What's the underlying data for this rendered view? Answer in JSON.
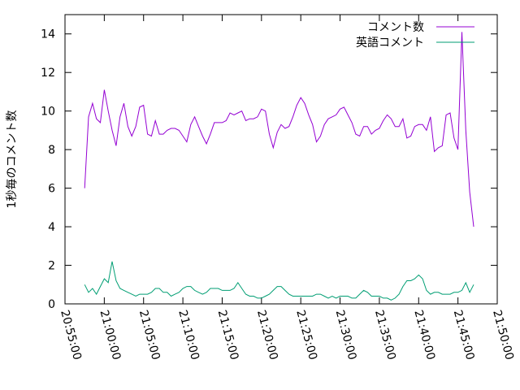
{
  "chart_data": {
    "type": "line",
    "title": "",
    "xlabel": "",
    "ylabel": "1秒毎のコメント数",
    "xlim": [
      "20:55:00",
      "21:50:00"
    ],
    "ylim": [
      0,
      15
    ],
    "x_ticks": [
      "20:55:00",
      "21:00:00",
      "21:05:00",
      "21:10:00",
      "21:15:00",
      "21:20:00",
      "21:25:00",
      "21:30:00",
      "21:35:00",
      "21:40:00",
      "21:45:00",
      "21:50:00"
    ],
    "y_ticks": [
      "0",
      "2",
      "4",
      "6",
      "8",
      "10",
      "12",
      "14"
    ],
    "legend_position": "top-right",
    "grid": false,
    "series": [
      {
        "name": "コメント数",
        "color": "#9400d3",
        "x": [
          "20:57:30",
          "20:58:00",
          "20:58:30",
          "20:59:00",
          "20:59:30",
          "21:00:00",
          "21:00:30",
          "21:01:00",
          "21:01:30",
          "21:02:00",
          "21:02:30",
          "21:03:00",
          "21:03:30",
          "21:04:00",
          "21:04:30",
          "21:05:00",
          "21:05:30",
          "21:06:00",
          "21:06:30",
          "21:07:00",
          "21:07:30",
          "21:08:00",
          "21:08:30",
          "21:09:00",
          "21:09:30",
          "21:10:00",
          "21:10:30",
          "21:11:00",
          "21:11:30",
          "21:12:00",
          "21:12:30",
          "21:13:00",
          "21:13:30",
          "21:14:00",
          "21:14:30",
          "21:15:00",
          "21:15:30",
          "21:16:00",
          "21:16:30",
          "21:17:00",
          "21:17:30",
          "21:18:00",
          "21:18:30",
          "21:19:00",
          "21:19:30",
          "21:20:00",
          "21:20:30",
          "21:21:00",
          "21:21:30",
          "21:22:00",
          "21:22:30",
          "21:23:00",
          "21:23:30",
          "21:24:00",
          "21:24:30",
          "21:25:00",
          "21:25:30",
          "21:26:00",
          "21:26:30",
          "21:27:00",
          "21:27:30",
          "21:28:00",
          "21:28:30",
          "21:29:00",
          "21:29:30",
          "21:30:00",
          "21:30:30",
          "21:31:00",
          "21:31:30",
          "21:32:00",
          "21:32:30",
          "21:33:00",
          "21:33:30",
          "21:34:00",
          "21:34:30",
          "21:35:00",
          "21:35:30",
          "21:36:00",
          "21:36:30",
          "21:37:00",
          "21:37:30",
          "21:38:00",
          "21:38:30",
          "21:39:00",
          "21:39:30",
          "21:40:00",
          "21:40:30",
          "21:41:00",
          "21:41:30",
          "21:42:00",
          "21:42:30",
          "21:43:00",
          "21:43:30",
          "21:44:00",
          "21:44:30",
          "21:45:00",
          "21:45:30",
          "21:46:00",
          "21:46:30",
          "21:47:00"
        ],
        "values": [
          6.0,
          9.7,
          10.4,
          9.6,
          9.4,
          11.1,
          10.0,
          9.0,
          8.2,
          9.7,
          10.4,
          9.2,
          8.7,
          9.2,
          10.2,
          10.3,
          8.8,
          8.7,
          9.5,
          8.8,
          8.8,
          9.0,
          9.1,
          9.1,
          9.0,
          8.7,
          8.4,
          9.3,
          9.7,
          9.2,
          8.7,
          8.3,
          8.8,
          9.4,
          9.4,
          9.4,
          9.5,
          9.9,
          9.8,
          9.9,
          10.0,
          9.5,
          9.6,
          9.6,
          9.7,
          10.1,
          10.0,
          8.8,
          8.1,
          8.9,
          9.3,
          9.1,
          9.2,
          9.7,
          10.3,
          10.7,
          10.4,
          9.8,
          9.3,
          8.4,
          8.7,
          9.3,
          9.6,
          9.7,
          9.8,
          10.1,
          10.2,
          9.8,
          9.4,
          8.8,
          8.7,
          9.2,
          9.2,
          8.8,
          9.0,
          9.1,
          9.5,
          9.8,
          9.6,
          9.2,
          9.2,
          9.6,
          8.6,
          8.7,
          9.2,
          9.3,
          9.3,
          9.0,
          9.7,
          7.9,
          8.1,
          8.2,
          9.8,
          9.9,
          8.6,
          8.0,
          14.1,
          9.0,
          5.8,
          4.0
        ]
      },
      {
        "name": "英語コメント",
        "color": "#009e73",
        "x": [
          "20:57:30",
          "20:58:00",
          "20:58:30",
          "20:59:00",
          "20:59:30",
          "21:00:00",
          "21:00:30",
          "21:01:00",
          "21:01:30",
          "21:02:00",
          "21:02:30",
          "21:03:00",
          "21:03:30",
          "21:04:00",
          "21:04:30",
          "21:05:00",
          "21:05:30",
          "21:06:00",
          "21:06:30",
          "21:07:00",
          "21:07:30",
          "21:08:00",
          "21:08:30",
          "21:09:00",
          "21:09:30",
          "21:10:00",
          "21:10:30",
          "21:11:00",
          "21:11:30",
          "21:12:00",
          "21:12:30",
          "21:13:00",
          "21:13:30",
          "21:14:00",
          "21:14:30",
          "21:15:00",
          "21:15:30",
          "21:16:00",
          "21:16:30",
          "21:17:00",
          "21:17:30",
          "21:18:00",
          "21:18:30",
          "21:19:00",
          "21:19:30",
          "21:20:00",
          "21:20:30",
          "21:21:00",
          "21:21:30",
          "21:22:00",
          "21:22:30",
          "21:23:00",
          "21:23:30",
          "21:24:00",
          "21:24:30",
          "21:25:00",
          "21:25:30",
          "21:26:00",
          "21:26:30",
          "21:27:00",
          "21:27:30",
          "21:28:00",
          "21:28:30",
          "21:29:00",
          "21:29:30",
          "21:30:00",
          "21:30:30",
          "21:31:00",
          "21:31:30",
          "21:32:00",
          "21:32:30",
          "21:33:00",
          "21:33:30",
          "21:34:00",
          "21:34:30",
          "21:35:00",
          "21:35:30",
          "21:36:00",
          "21:36:30",
          "21:37:00",
          "21:37:30",
          "21:38:00",
          "21:38:30",
          "21:39:00",
          "21:39:30",
          "21:40:00",
          "21:40:30",
          "21:41:00",
          "21:41:30",
          "21:42:00",
          "21:42:30",
          "21:43:00",
          "21:43:30",
          "21:44:00",
          "21:44:30",
          "21:45:00",
          "21:45:30",
          "21:46:00",
          "21:46:30",
          "21:47:00"
        ],
        "values": [
          1.0,
          0.6,
          0.8,
          0.5,
          0.9,
          1.3,
          1.1,
          2.2,
          1.2,
          0.8,
          0.7,
          0.6,
          0.5,
          0.4,
          0.5,
          0.5,
          0.5,
          0.6,
          0.8,
          0.8,
          0.6,
          0.6,
          0.4,
          0.5,
          0.6,
          0.8,
          0.9,
          0.9,
          0.7,
          0.6,
          0.5,
          0.6,
          0.8,
          0.8,
          0.8,
          0.7,
          0.7,
          0.7,
          0.8,
          1.1,
          0.8,
          0.5,
          0.4,
          0.4,
          0.3,
          0.3,
          0.4,
          0.5,
          0.7,
          0.9,
          0.9,
          0.7,
          0.5,
          0.4,
          0.4,
          0.4,
          0.4,
          0.4,
          0.4,
          0.5,
          0.5,
          0.4,
          0.3,
          0.4,
          0.3,
          0.4,
          0.4,
          0.4,
          0.3,
          0.3,
          0.5,
          0.7,
          0.6,
          0.4,
          0.4,
          0.4,
          0.3,
          0.3,
          0.2,
          0.3,
          0.5,
          0.9,
          1.2,
          1.2,
          1.3,
          1.5,
          1.3,
          0.7,
          0.5,
          0.6,
          0.6,
          0.5,
          0.5,
          0.5,
          0.6,
          0.6,
          0.7,
          1.1,
          0.6,
          1.0
        ]
      }
    ]
  }
}
